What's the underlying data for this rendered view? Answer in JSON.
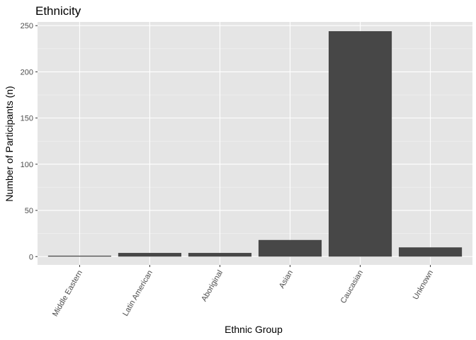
{
  "chart_data": {
    "type": "bar",
    "title": "Ethnicity",
    "xlabel": "Ethnic Group",
    "ylabel": "Number of Participants (n)",
    "categories": [
      "Middle Eastern",
      "Latin American",
      "Aboriginal",
      "Asian",
      "Caucasian",
      "Unknown"
    ],
    "values": [
      1,
      4,
      4,
      18,
      244,
      10
    ],
    "ylim": [
      -9,
      254
    ],
    "yticks": [
      0,
      50,
      100,
      150,
      200,
      250
    ],
    "grid": true,
    "colors": {
      "panel": "#e5e5e5",
      "bar": "#474747",
      "grid": "#ffffff"
    }
  }
}
